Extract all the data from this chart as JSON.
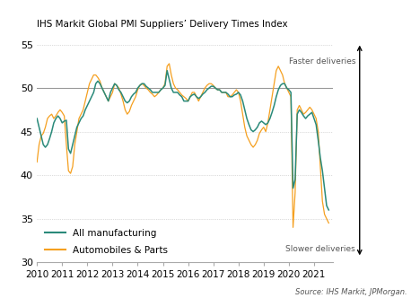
{
  "title": "IHS Markit Global PMI Suppliers’ Delivery Times Index",
  "source_text": "Source: IHS Markit, JPMorgan.",
  "faster_text": "Faster deliveries",
  "slower_text": "Slower deliveries",
  "legend_all": "All manufacturing",
  "legend_auto": "Automobiles & Parts",
  "color_all": "#2a8a7a",
  "color_auto": "#f5a020",
  "ylim": [
    30,
    56
  ],
  "yticks": [
    30,
    35,
    40,
    45,
    50,
    55
  ],
  "xlim": [
    2010.0,
    2021.75
  ],
  "xticks": [
    2010,
    2011,
    2012,
    2013,
    2014,
    2015,
    2016,
    2017,
    2018,
    2019,
    2020,
    2021
  ],
  "reference_line": 50,
  "all_manufacturing_dates": [
    2010.0,
    2010.083,
    2010.167,
    2010.25,
    2010.333,
    2010.417,
    2010.5,
    2010.583,
    2010.667,
    2010.75,
    2010.833,
    2010.917,
    2011.0,
    2011.083,
    2011.167,
    2011.25,
    2011.333,
    2011.417,
    2011.5,
    2011.583,
    2011.667,
    2011.75,
    2011.833,
    2011.917,
    2012.0,
    2012.083,
    2012.167,
    2012.25,
    2012.333,
    2012.417,
    2012.5,
    2012.583,
    2012.667,
    2012.75,
    2012.833,
    2012.917,
    2013.0,
    2013.083,
    2013.167,
    2013.25,
    2013.333,
    2013.417,
    2013.5,
    2013.583,
    2013.667,
    2013.75,
    2013.833,
    2013.917,
    2014.0,
    2014.083,
    2014.167,
    2014.25,
    2014.333,
    2014.417,
    2014.5,
    2014.583,
    2014.667,
    2014.75,
    2014.833,
    2014.917,
    2015.0,
    2015.083,
    2015.167,
    2015.25,
    2015.333,
    2015.417,
    2015.5,
    2015.583,
    2015.667,
    2015.75,
    2015.833,
    2015.917,
    2016.0,
    2016.083,
    2016.167,
    2016.25,
    2016.333,
    2016.417,
    2016.5,
    2016.583,
    2016.667,
    2016.75,
    2016.833,
    2016.917,
    2017.0,
    2017.083,
    2017.167,
    2017.25,
    2017.333,
    2017.417,
    2017.5,
    2017.583,
    2017.667,
    2017.75,
    2017.833,
    2017.917,
    2018.0,
    2018.083,
    2018.167,
    2018.25,
    2018.333,
    2018.417,
    2018.5,
    2018.583,
    2018.667,
    2018.75,
    2018.833,
    2018.917,
    2019.0,
    2019.083,
    2019.167,
    2019.25,
    2019.333,
    2019.417,
    2019.5,
    2019.583,
    2019.667,
    2019.75,
    2019.833,
    2019.917,
    2020.0,
    2020.083,
    2020.167,
    2020.25,
    2020.333,
    2020.417,
    2020.5,
    2020.583,
    2020.667,
    2020.75,
    2020.833,
    2020.917,
    2021.0,
    2021.083,
    2021.167,
    2021.25,
    2021.333,
    2021.417,
    2021.5,
    2021.583
  ],
  "all_manufacturing_values": [
    46.5,
    45.5,
    44.5,
    43.5,
    43.2,
    43.5,
    44.2,
    45.0,
    46.0,
    46.5,
    46.8,
    46.5,
    46.0,
    46.2,
    46.3,
    43.0,
    42.5,
    43.5,
    44.5,
    45.5,
    46.0,
    46.5,
    46.8,
    47.5,
    48.0,
    48.5,
    49.0,
    49.5,
    50.5,
    50.8,
    50.5,
    50.0,
    49.5,
    49.0,
    48.5,
    49.5,
    50.0,
    50.5,
    50.3,
    49.8,
    49.5,
    49.0,
    48.5,
    48.3,
    48.5,
    49.0,
    49.3,
    49.5,
    50.0,
    50.3,
    50.5,
    50.5,
    50.2,
    50.0,
    49.8,
    49.5,
    49.5,
    49.5,
    49.5,
    49.8,
    50.0,
    50.3,
    52.0,
    51.0,
    50.0,
    49.5,
    49.5,
    49.5,
    49.2,
    49.0,
    48.5,
    48.5,
    48.5,
    49.0,
    49.2,
    49.3,
    49.0,
    48.8,
    49.0,
    49.3,
    49.5,
    49.8,
    50.0,
    50.2,
    50.2,
    50.0,
    49.8,
    49.8,
    49.5,
    49.5,
    49.5,
    49.3,
    49.0,
    49.0,
    49.2,
    49.3,
    49.5,
    49.2,
    48.5,
    47.5,
    46.5,
    45.8,
    45.2,
    45.0,
    45.2,
    45.5,
    46.0,
    46.2,
    46.0,
    45.8,
    46.0,
    46.5,
    47.2,
    48.0,
    49.0,
    49.8,
    50.3,
    50.5,
    50.5,
    50.0,
    49.8,
    49.5,
    38.5,
    39.5,
    47.0,
    47.5,
    47.2,
    46.8,
    46.5,
    46.8,
    47.0,
    47.2,
    46.5,
    45.8,
    44.0,
    42.0,
    40.5,
    38.5,
    36.5,
    36.0
  ],
  "automobiles_dates": [
    2010.0,
    2010.083,
    2010.167,
    2010.25,
    2010.333,
    2010.417,
    2010.5,
    2010.583,
    2010.667,
    2010.75,
    2010.833,
    2010.917,
    2011.0,
    2011.083,
    2011.167,
    2011.25,
    2011.333,
    2011.417,
    2011.5,
    2011.583,
    2011.667,
    2011.75,
    2011.833,
    2011.917,
    2012.0,
    2012.083,
    2012.167,
    2012.25,
    2012.333,
    2012.417,
    2012.5,
    2012.583,
    2012.667,
    2012.75,
    2012.833,
    2012.917,
    2013.0,
    2013.083,
    2013.167,
    2013.25,
    2013.333,
    2013.417,
    2013.5,
    2013.583,
    2013.667,
    2013.75,
    2013.833,
    2013.917,
    2014.0,
    2014.083,
    2014.167,
    2014.25,
    2014.333,
    2014.417,
    2014.5,
    2014.583,
    2014.667,
    2014.75,
    2014.833,
    2014.917,
    2015.0,
    2015.083,
    2015.167,
    2015.25,
    2015.333,
    2015.417,
    2015.5,
    2015.583,
    2015.667,
    2015.75,
    2015.833,
    2015.917,
    2016.0,
    2016.083,
    2016.167,
    2016.25,
    2016.333,
    2016.417,
    2016.5,
    2016.583,
    2016.667,
    2016.75,
    2016.833,
    2016.917,
    2017.0,
    2017.083,
    2017.167,
    2017.25,
    2017.333,
    2017.417,
    2017.5,
    2017.583,
    2017.667,
    2017.75,
    2017.833,
    2017.917,
    2018.0,
    2018.083,
    2018.167,
    2018.25,
    2018.333,
    2018.417,
    2018.5,
    2018.583,
    2018.667,
    2018.75,
    2018.833,
    2018.917,
    2019.0,
    2019.083,
    2019.167,
    2019.25,
    2019.333,
    2019.417,
    2019.5,
    2019.583,
    2019.667,
    2019.75,
    2019.833,
    2019.917,
    2020.0,
    2020.083,
    2020.167,
    2020.25,
    2020.333,
    2020.417,
    2020.5,
    2020.583,
    2020.667,
    2020.75,
    2020.833,
    2020.917,
    2021.0,
    2021.083,
    2021.167,
    2021.25,
    2021.333,
    2021.417,
    2021.5,
    2021.583
  ],
  "automobiles_values": [
    41.5,
    43.5,
    44.5,
    44.8,
    45.5,
    46.5,
    46.8,
    47.0,
    46.5,
    46.8,
    47.2,
    47.5,
    47.2,
    46.8,
    43.5,
    40.5,
    40.2,
    41.0,
    43.5,
    45.0,
    46.5,
    47.0,
    47.5,
    48.5,
    49.5,
    50.5,
    51.0,
    51.5,
    51.5,
    51.2,
    50.8,
    50.0,
    49.5,
    49.0,
    48.5,
    49.0,
    49.5,
    50.5,
    50.3,
    50.0,
    49.3,
    48.5,
    47.5,
    47.0,
    47.3,
    48.0,
    48.5,
    49.0,
    49.8,
    50.3,
    50.5,
    50.3,
    50.0,
    49.8,
    49.5,
    49.3,
    49.0,
    49.2,
    49.5,
    49.8,
    50.0,
    50.5,
    52.5,
    52.8,
    51.5,
    50.5,
    50.0,
    49.8,
    49.5,
    49.2,
    49.0,
    48.8,
    48.5,
    49.0,
    49.5,
    49.5,
    49.0,
    48.5,
    49.0,
    49.5,
    50.0,
    50.3,
    50.5,
    50.5,
    50.3,
    50.0,
    49.8,
    49.8,
    49.5,
    49.5,
    49.5,
    49.0,
    49.0,
    49.2,
    49.5,
    49.8,
    49.5,
    48.5,
    47.0,
    45.5,
    44.5,
    44.0,
    43.5,
    43.2,
    43.5,
    44.0,
    44.8,
    45.2,
    45.5,
    45.0,
    46.0,
    47.5,
    49.0,
    50.5,
    52.0,
    52.5,
    52.0,
    51.5,
    50.5,
    50.0,
    49.5,
    49.0,
    34.0,
    38.0,
    47.5,
    48.0,
    47.5,
    47.0,
    47.2,
    47.5,
    47.8,
    47.5,
    47.0,
    46.5,
    45.0,
    41.0,
    37.0,
    35.5,
    35.0,
    34.5
  ]
}
